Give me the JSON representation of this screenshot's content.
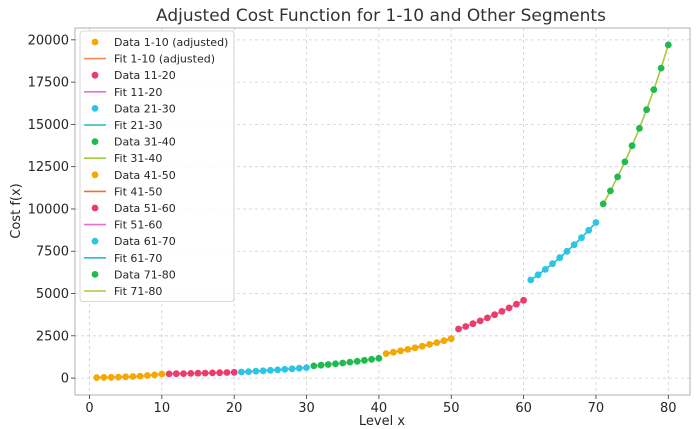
{
  "chart_data": {
    "type": "scatter",
    "title": "Adjusted Cost Function for 1-10 and Other Segments",
    "xlabel": "Level x",
    "ylabel": "Cost f(x)",
    "xlim": [
      -2,
      83
    ],
    "ylim": [
      -1000,
      20700
    ],
    "xticks": [
      0,
      10,
      20,
      30,
      40,
      50,
      60,
      70,
      80
    ],
    "yticks": [
      0,
      2500,
      5000,
      7500,
      10000,
      12500,
      15000,
      17500,
      20000
    ],
    "grid": true,
    "legend_position": "upper-left",
    "segments": [
      {
        "data_label": "Data 1-10 (adjusted)",
        "fit_label": "Fit 1-10 (adjusted)",
        "point_color": "#f5a800",
        "line_color": "#f08b53",
        "x_start": 1,
        "x_end": 10,
        "y_start": 30,
        "y_end": 240
      },
      {
        "data_label": "Data 11-20",
        "fit_label": "Fit 11-20",
        "point_color": "#ea3e6a",
        "line_color": "#e86fd0",
        "x_start": 11,
        "x_end": 20,
        "y_start": 250,
        "y_end": 340
      },
      {
        "data_label": "Data 21-30",
        "fit_label": "Fit 21-30",
        "point_color": "#2ec4e6",
        "line_color": "#21c1b5",
        "x_start": 21,
        "x_end": 30,
        "y_start": 360,
        "y_end": 620
      },
      {
        "data_label": "Data 31-40",
        "fit_label": "Fit 31-40",
        "point_color": "#1fbb52",
        "line_color": "#a8c93a",
        "x_start": 31,
        "x_end": 40,
        "y_start": 720,
        "y_end": 1170
      },
      {
        "data_label": "Data 41-50",
        "fit_label": "Fit 41-50",
        "point_color": "#f5a800",
        "line_color": "#e8742c",
        "x_start": 41,
        "x_end": 50,
        "y_start": 1450,
        "y_end": 2330
      },
      {
        "data_label": "Data 51-60",
        "fit_label": "Fit 51-60",
        "point_color": "#ea3e6a",
        "line_color": "#e86fd0",
        "x_start": 51,
        "x_end": 60,
        "y_start": 2900,
        "y_end": 4600
      },
      {
        "data_label": "Data 61-70",
        "fit_label": "Fit 61-70",
        "point_color": "#2ec4e6",
        "line_color": "#21bcd6",
        "x_start": 61,
        "x_end": 70,
        "y_start": 5800,
        "y_end": 9200
      },
      {
        "data_label": "Data 71-80",
        "fit_label": "Fit 71-80",
        "point_color": "#1fbb52",
        "line_color": "#a8c93a",
        "x_start": 71,
        "x_end": 80,
        "y_start": 10300,
        "y_end": 19700
      }
    ]
  }
}
